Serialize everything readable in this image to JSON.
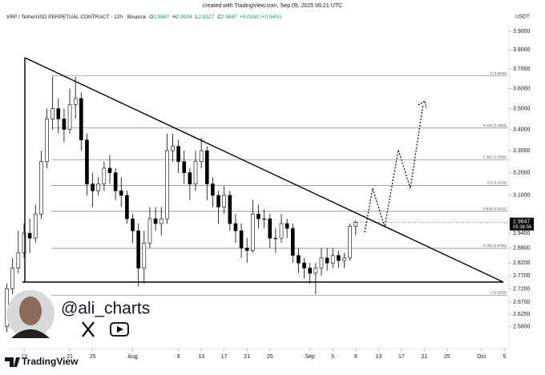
{
  "chart_data": {
    "type": "candlestick",
    "created_note": "created with TradingView.com, Sep 09, 2025 06:21 UTC",
    "title": "XRP / TetherUSD PERPETUAL CONTRACT · 12h · Binance",
    "ohlc_header": [
      {
        "label": "O",
        "value": 2.9687
      },
      {
        "label": "H",
        "value": 2.9934
      },
      {
        "label": "L",
        "value": 2.9327
      },
      {
        "label": "C",
        "value": 2.9847
      }
    ],
    "change_text": "+0.0160 (+0.54%)",
    "currency": "USDT",
    "brand": "TradingView",
    "watermark_handle": "@ali_charts",
    "log_scale": true,
    "up_color": "#ffffff",
    "down_color": "#000000",
    "x": [
      10,
      11,
      12,
      13,
      14,
      15,
      16,
      17,
      18,
      19,
      20,
      21,
      22,
      23,
      24,
      25,
      26,
      27,
      28,
      29,
      30,
      31,
      32,
      33,
      34,
      35,
      36,
      37,
      38,
      39,
      40,
      41,
      42,
      43,
      44,
      45,
      46,
      47,
      48,
      49,
      50,
      51,
      52,
      53,
      54,
      55,
      56,
      57,
      58,
      59,
      60,
      61,
      62,
      63,
      64,
      65,
      66,
      67,
      68,
      69,
      70,
      71
    ],
    "open": [
      2.58,
      2.72,
      2.8,
      2.86,
      2.94,
      2.92,
      3.02,
      3.25,
      3.45,
      3.5,
      3.45,
      3.4,
      3.52,
      3.55,
      3.35,
      3.15,
      3.12,
      3.15,
      3.22,
      3.2,
      3.12,
      3.1,
      3.0,
      2.95,
      2.8,
      2.9,
      3.0,
      2.98,
      3.0,
      3.3,
      3.32,
      3.25,
      3.2,
      3.15,
      3.25,
      3.3,
      3.15,
      3.1,
      3.05,
      3.1,
      2.98,
      2.95,
      2.88,
      2.87,
      3.02,
      3.0,
      3.0,
      2.92,
      2.92,
      2.98,
      2.96,
      2.85,
      2.82,
      2.8,
      2.78,
      2.8,
      2.84,
      2.82,
      2.85,
      2.83,
      2.84,
      2.9687
    ],
    "high": [
      2.74,
      2.84,
      2.95,
      2.98,
      3.0,
      3.06,
      3.3,
      3.5,
      3.66,
      3.55,
      3.5,
      3.6,
      3.66,
      3.58,
      3.38,
      3.2,
      3.18,
      3.25,
      3.28,
      3.22,
      3.18,
      3.12,
      3.02,
      2.98,
      2.95,
      3.05,
      3.05,
      3.05,
      3.38,
      3.38,
      3.35,
      3.3,
      3.22,
      3.3,
      3.36,
      3.32,
      3.18,
      3.12,
      3.14,
      3.12,
      3.02,
      2.98,
      2.92,
      3.08,
      3.06,
      3.04,
      3.02,
      2.96,
      3.02,
      3.0,
      2.98,
      2.88,
      2.84,
      2.82,
      2.82,
      2.88,
      2.88,
      2.88,
      2.87,
      2.86,
      2.98,
      2.9934
    ],
    "low": [
      2.56,
      2.7,
      2.78,
      2.84,
      2.86,
      2.9,
      3.0,
      3.22,
      3.4,
      3.38,
      3.34,
      3.38,
      3.45,
      3.3,
      3.1,
      3.05,
      3.1,
      3.12,
      3.15,
      3.08,
      3.05,
      2.98,
      2.9,
      2.73,
      2.74,
      2.88,
      2.95,
      2.93,
      2.98,
      3.25,
      3.2,
      3.15,
      3.08,
      3.12,
      3.22,
      3.08,
      3.05,
      2.98,
      3.02,
      2.95,
      2.9,
      2.84,
      2.82,
      2.86,
      2.96,
      2.96,
      2.88,
      2.86,
      2.9,
      2.92,
      2.82,
      2.78,
      2.76,
      2.74,
      2.7,
      2.77,
      2.79,
      2.8,
      2.8,
      2.8,
      2.83,
      2.9327
    ],
    "close": [
      2.72,
      2.8,
      2.86,
      2.94,
      2.92,
      3.02,
      3.25,
      3.45,
      3.5,
      3.45,
      3.4,
      3.52,
      3.55,
      3.35,
      3.15,
      3.12,
      3.15,
      3.22,
      3.2,
      3.12,
      3.1,
      3.0,
      2.95,
      2.8,
      2.9,
      3.0,
      2.98,
      3.0,
      3.3,
      3.32,
      3.25,
      3.2,
      3.15,
      3.25,
      3.3,
      3.15,
      3.1,
      3.05,
      3.1,
      2.98,
      2.95,
      2.88,
      2.87,
      3.02,
      3.0,
      3.0,
      2.92,
      2.92,
      2.98,
      2.96,
      2.85,
      2.82,
      2.8,
      2.78,
      2.8,
      2.84,
      2.82,
      2.85,
      2.83,
      2.84,
      2.9687,
      2.9847
    ],
    "last_price": {
      "value": 2.9847,
      "countdown": "05:38:56"
    },
    "fib_levels": [
      {
        "value": 3.6646,
        "label": "0 (3.6646)"
      },
      {
        "value": 3.4064,
        "label": "0.236 (3.4064)"
      },
      {
        "value": 3.2589,
        "label": "0.382 (3.2589)"
      },
      {
        "value": 3.1429,
        "label": "0.5 (3.1429)"
      },
      {
        "value": 3.0311,
        "label": "0.618 (3.0311)"
      },
      {
        "value": 2.8786,
        "label": "0.786 (2.8786)"
      },
      {
        "value": 2.6955,
        "label": "1 (2.6955)"
      }
    ],
    "xlim": [
      10.2,
      97.8
    ],
    "xticks": [
      {
        "value": 13,
        "label": "13"
      },
      {
        "value": 21,
        "label": "21"
      },
      {
        "value": 25,
        "label": "25"
      },
      {
        "value": 32,
        "label": "Aug"
      },
      {
        "value": 40,
        "label": "9"
      },
      {
        "value": 44,
        "label": "13"
      },
      {
        "value": 48,
        "label": "17"
      },
      {
        "value": 52,
        "label": "21"
      },
      {
        "value": 56,
        "label": "25"
      },
      {
        "value": 63,
        "label": "Sep"
      },
      {
        "value": 67,
        "label": "5"
      },
      {
        "value": 71,
        "label": "9"
      },
      {
        "value": 75,
        "label": "13"
      },
      {
        "value": 79,
        "label": "17"
      },
      {
        "value": 83,
        "label": "21"
      },
      {
        "value": 87,
        "label": "25"
      },
      {
        "value": 93,
        "label": "Oct"
      },
      {
        "value": 97,
        "label": "5"
      }
    ],
    "ylim": [
      2.53,
      3.94
    ],
    "yticks": [
      {
        "value": 2.58,
        "label": "2.5800"
      },
      {
        "value": 2.625,
        "label": "2.6250"
      },
      {
        "value": 2.67,
        "label": "2.6700"
      },
      {
        "value": 2.72,
        "label": "2.7200"
      },
      {
        "value": 2.77,
        "label": "2.7700"
      },
      {
        "value": 2.82,
        "label": "2.8200"
      },
      {
        "value": 2.88,
        "label": "2.8800"
      },
      {
        "value": 2.94,
        "label": "2.9400"
      },
      {
        "value": 3.1,
        "label": "3.1000"
      },
      {
        "value": 3.2,
        "label": "3.2000"
      },
      {
        "value": 3.3,
        "label": "3.3000"
      },
      {
        "value": 3.4,
        "label": "3.4000"
      },
      {
        "value": 3.5,
        "label": "3.5000"
      },
      {
        "value": 3.6,
        "label": "3.6000"
      },
      {
        "value": 3.7,
        "label": "3.7000"
      },
      {
        "value": 3.8,
        "label": "3.8000"
      },
      {
        "value": 3.9,
        "label": "3.9000"
      }
    ]
  }
}
